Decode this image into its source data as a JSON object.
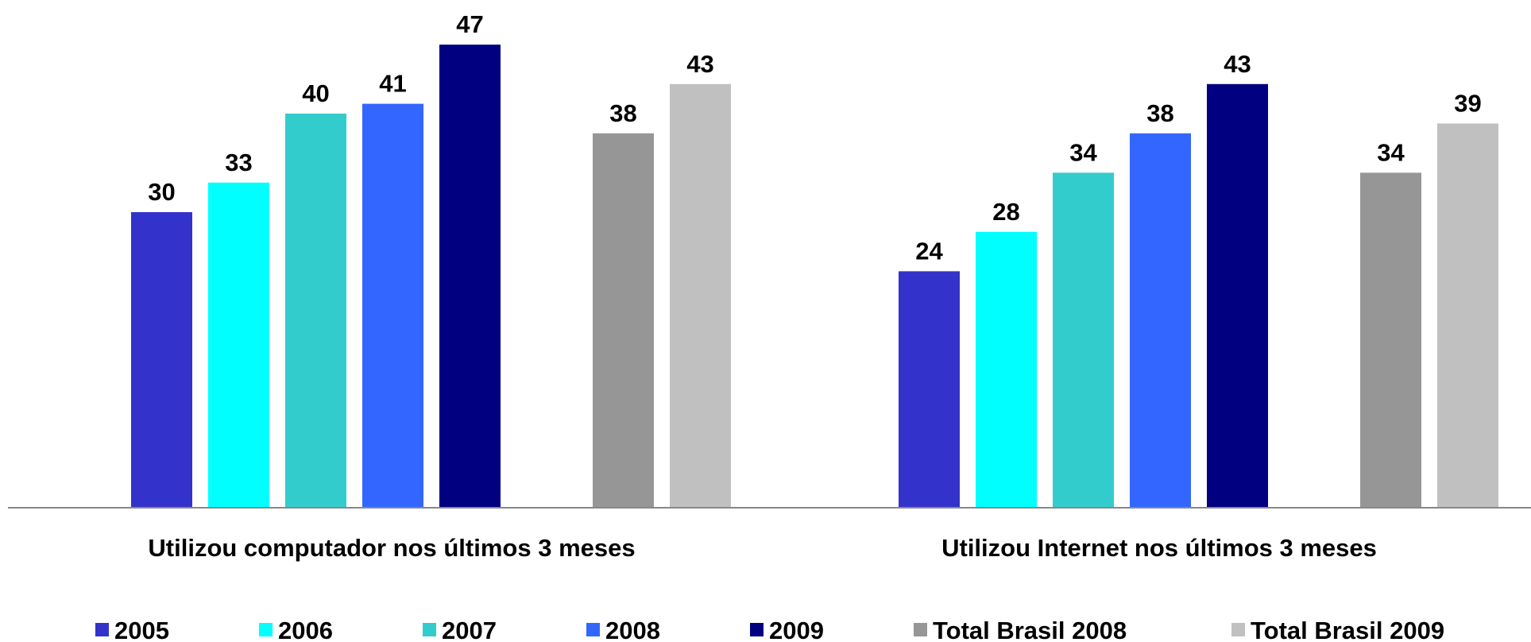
{
  "chart_data": {
    "type": "bar",
    "categories": [
      "Utilizou computador nos últimos 3 meses",
      "Utilizou Internet nos últimos 3 meses"
    ],
    "series": [
      {
        "name": "2005",
        "color": "#3333cc",
        "values": [
          30,
          24
        ]
      },
      {
        "name": "2006",
        "color": "#00ffff",
        "values": [
          33,
          28
        ]
      },
      {
        "name": "2007",
        "color": "#33cccc",
        "values": [
          40,
          34
        ]
      },
      {
        "name": "2008",
        "color": "#3366ff",
        "values": [
          41,
          38
        ]
      },
      {
        "name": "2009",
        "color": "#000080",
        "values": [
          47,
          43
        ]
      },
      {
        "name": "Total Brasil 2008",
        "color": "#969696",
        "values": [
          38,
          34
        ]
      },
      {
        "name": "Total Brasil 2009",
        "color": "#c0c0c0",
        "values": [
          43,
          39
        ]
      }
    ],
    "ylim": [
      0,
      50
    ],
    "legend_position": "bottom",
    "grid": false
  }
}
